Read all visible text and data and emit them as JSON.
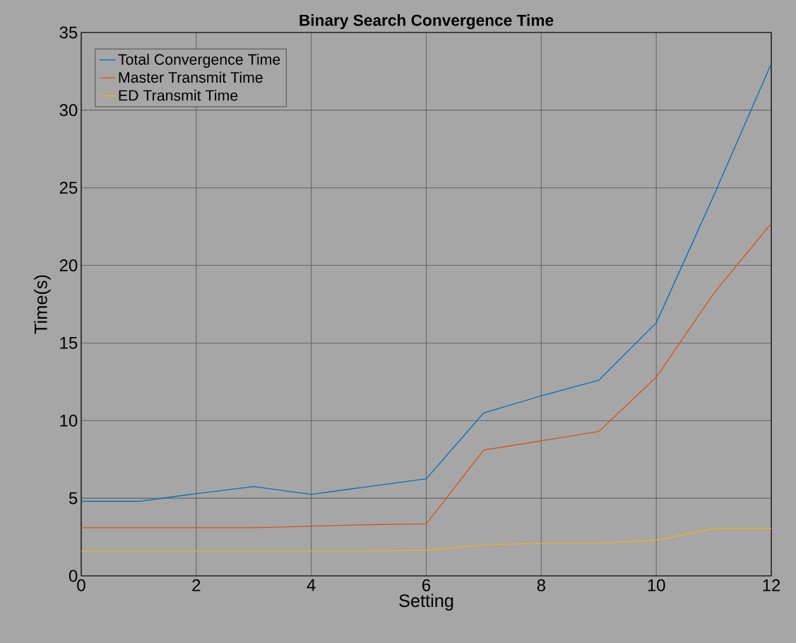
{
  "chart_data": {
    "type": "line",
    "title": "Binary Search Convergence Time",
    "xlabel": "Setting",
    "ylabel": "Time(s)",
    "x": [
      0,
      1,
      2,
      3,
      4,
      5,
      6,
      7,
      8,
      9,
      10,
      11,
      12
    ],
    "series": [
      {
        "name": "Total Convergence Time",
        "color": "#0072bd",
        "values": [
          4.8,
          4.8,
          5.3,
          5.75,
          5.25,
          5.75,
          6.25,
          10.5,
          11.6,
          12.6,
          16.3,
          24.5,
          33
        ]
      },
      {
        "name": "Master Transmit Time",
        "color": "#d95319",
        "values": [
          3.1,
          3.1,
          3.1,
          3.1,
          3.2,
          3.3,
          3.35,
          8.1,
          8.7,
          9.3,
          12.8,
          18.2,
          22.7
        ]
      },
      {
        "name": "ED Transmit Time",
        "color": "#edb120",
        "values": [
          1.6,
          1.6,
          1.6,
          1.6,
          1.6,
          1.6,
          1.65,
          2.0,
          2.1,
          2.1,
          2.3,
          3.05,
          3.05
        ]
      }
    ],
    "xlim": [
      0,
      12
    ],
    "xticks": [
      0,
      2,
      4,
      6,
      8,
      10,
      12
    ],
    "ylim": [
      0,
      35
    ],
    "yticks": [
      0,
      5,
      10,
      15,
      20,
      25,
      30,
      35
    ],
    "grid": true,
    "legend": "top left",
    "marker": "none",
    "line_style": "solid"
  }
}
